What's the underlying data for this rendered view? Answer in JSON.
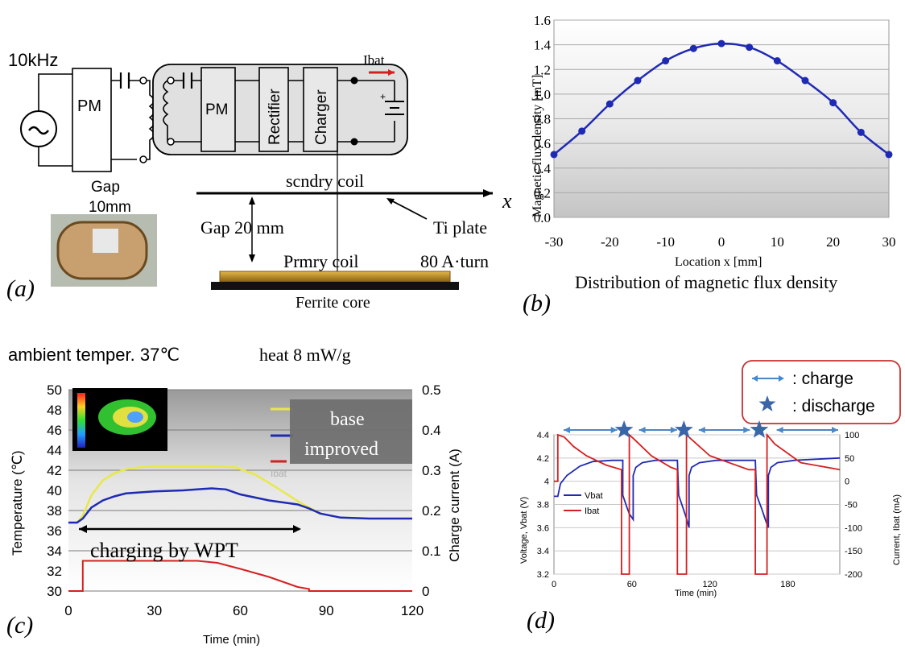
{
  "panel_a": {
    "freq": "10kHz",
    "pm1": "PM",
    "pm2": "PM",
    "rectifier": "Rectifier",
    "charger": "Charger",
    "ibat": "Ibat",
    "plus": "+",
    "gap1": "Gap",
    "gap1_val": "10mm",
    "secondary": "scndry coil",
    "x_axis": "x",
    "ti_plate": "Ti plate",
    "gap2": "Gap  20 mm",
    "primary": "Prmry coil",
    "ampturn": "80 A·turn",
    "ferrite": "Ferrite core",
    "tag": "(a)"
  },
  "panel_b_text": {
    "tag": "(b)"
  },
  "panel_c_text": {
    "header_left": "ambient temper. 37℃",
    "header_right": "heat  8 mW/g",
    "annotation": "charging by WPT",
    "box_base": "base",
    "box_improved": "improved",
    "legend_ibat": "Ibat",
    "tag": "(c)"
  },
  "panel_d_text": {
    "legend_charge": ": charge",
    "legend_discharge": ": discharge",
    "tag": "(d)"
  },
  "chart_data": [
    {
      "type": "line",
      "title": "Distribution of  magnetic flux density",
      "xlabel": "Location x [mm]",
      "ylabel": "Magnetic flux density [mT]",
      "xlim": [
        -30,
        30
      ],
      "ylim": [
        0,
        1.6
      ],
      "xticks": [
        -30,
        -20,
        -10,
        0,
        10,
        20,
        30
      ],
      "yticks": [
        0.0,
        0.2,
        0.4,
        0.6,
        0.8,
        1.0,
        1.2,
        1.4,
        1.6
      ],
      "ytick_labels": [
        "0.0",
        "0.2",
        "0.4",
        "0.6",
        "0.8",
        "1.0",
        "1.2",
        "1.4",
        "1.6"
      ],
      "x": [
        -30,
        -25,
        -20,
        -15,
        -10,
        -5,
        0,
        5,
        10,
        15,
        20,
        25,
        30
      ],
      "y": [
        0.51,
        0.7,
        0.92,
        1.11,
        1.27,
        1.37,
        1.41,
        1.38,
        1.27,
        1.11,
        0.93,
        0.69,
        0.51
      ],
      "grid": true,
      "line_color": "#1f2ab4"
    },
    {
      "type": "line",
      "xlabel": "Time (min)",
      "ylabel": "Temperature (℃)",
      "y2label": "Charge current (A)",
      "xlim": [
        0,
        120
      ],
      "ylim": [
        30,
        50
      ],
      "y2lim": [
        0,
        0.5
      ],
      "xticks": [
        0,
        30,
        60,
        90,
        120
      ],
      "yticks": [
        30,
        32,
        34,
        36,
        38,
        40,
        42,
        44,
        46,
        48,
        50
      ],
      "y2ticks": [
        0,
        0.1,
        0.2,
        0.3,
        0.4,
        0.5
      ],
      "series": [
        {
          "name": "base",
          "color": "#e8e84a",
          "x": [
            0,
            3,
            5,
            8,
            12,
            16,
            20,
            25,
            30,
            40,
            50,
            58,
            65,
            72,
            78,
            82,
            86,
            88
          ],
          "y": [
            36.8,
            36.8,
            37.5,
            39.5,
            41.0,
            41.7,
            42.1,
            42.3,
            42.4,
            42.4,
            42.4,
            42.3,
            41.6,
            40.4,
            39.3,
            38.6,
            38.0,
            37.6
          ]
        },
        {
          "name": "improved",
          "color": "#1f2ab4",
          "x": [
            0,
            3,
            5,
            8,
            12,
            16,
            20,
            25,
            30,
            40,
            50,
            55,
            60,
            70,
            80,
            84,
            88,
            95,
            105,
            120
          ],
          "y": [
            36.8,
            36.8,
            37.2,
            38.3,
            39.0,
            39.4,
            39.7,
            39.8,
            39.9,
            40.0,
            40.2,
            40.1,
            39.6,
            39.0,
            38.6,
            38.2,
            37.7,
            37.3,
            37.2,
            37.2
          ]
        },
        {
          "name": "Ibat",
          "color": "#d42020",
          "axis": "y2",
          "x": [
            0,
            5,
            5,
            45,
            52,
            60,
            70,
            80,
            84,
            84,
            120
          ],
          "y": [
            0,
            0,
            0.075,
            0.075,
            0.07,
            0.055,
            0.035,
            0.01,
            0.005,
            0,
            0
          ]
        }
      ]
    },
    {
      "type": "line",
      "xlabel": "Time (min)",
      "ylabel": "Voltage, Vbat (V)",
      "y2label": "Current, Ibat (mA)",
      "xlim": [
        0,
        220
      ],
      "ylim": [
        3.2,
        4.4
      ],
      "y2lim": [
        -200,
        100
      ],
      "xticks": [
        0,
        60,
        120,
        180
      ],
      "yticks": [
        3.2,
        3.4,
        3.6,
        3.8,
        4,
        4.2,
        4.4
      ],
      "y2ticks": [
        -200,
        -150,
        -100,
        -50,
        0,
        50,
        100
      ],
      "series": [
        {
          "name": "Vbat",
          "color": "#1f2ab4",
          "x": [
            0,
            3,
            5,
            10,
            20,
            30,
            45,
            53,
            53,
            56,
            58,
            61,
            61,
            63,
            68,
            78,
            95,
            96,
            99,
            102,
            104,
            104,
            106,
            112,
            125,
            155,
            156,
            160,
            163,
            165,
            165,
            167,
            172,
            185,
            220
          ],
          "y": [
            3.87,
            3.87,
            3.98,
            4.05,
            4.13,
            4.17,
            4.18,
            4.18,
            3.88,
            3.78,
            3.72,
            3.67,
            4.05,
            4.12,
            4.16,
            4.18,
            4.18,
            3.88,
            3.78,
            3.68,
            3.6,
            4.05,
            4.12,
            4.16,
            4.18,
            4.18,
            3.88,
            3.76,
            3.66,
            3.6,
            4.05,
            4.12,
            4.16,
            4.18,
            4.2
          ]
        },
        {
          "name": "Ibat",
          "color": "#d42020",
          "axis": "y2",
          "x": [
            0,
            3,
            3,
            8,
            15,
            25,
            40,
            52,
            52,
            58,
            58,
            62,
            75,
            90,
            95,
            95,
            102,
            102,
            106,
            120,
            150,
            155,
            155,
            164,
            164,
            170,
            190,
            220
          ],
          "y": [
            0,
            0,
            100,
            95,
            75,
            55,
            35,
            25,
            -200,
            -200,
            100,
            90,
            55,
            30,
            25,
            -200,
            -200,
            100,
            90,
            55,
            25,
            25,
            -200,
            -200,
            100,
            80,
            40,
            25
          ]
        }
      ]
    }
  ]
}
